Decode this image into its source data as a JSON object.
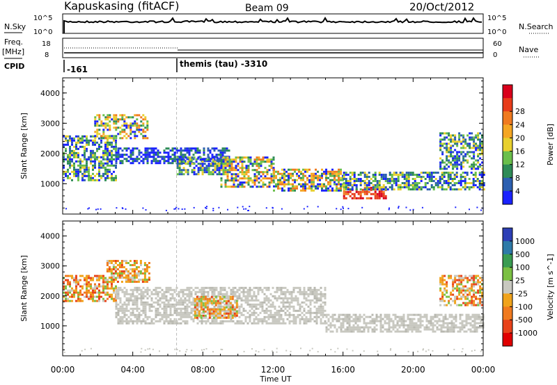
{
  "header": {
    "station": "Kapuskasing (fitACF)",
    "beam": "Beam 09",
    "date": "20/Oct/2012"
  },
  "top_panels": {
    "nsky_label": "N.Sky",
    "nsky_ticks": [
      "10^5",
      "10^0"
    ],
    "nsearch_label": "N.Search",
    "freq_label": "Freq.",
    "freq_unit": "[MHz]",
    "freq_ticks": [
      "18",
      "8"
    ],
    "nave_ticks": [
      "60",
      "0"
    ],
    "nave_label": "Nave",
    "cpid_label": "CPID",
    "cpid_values": [
      "-161",
      "themis (tau) -3310"
    ]
  },
  "chart_data": [
    {
      "type": "heatmap",
      "title": "",
      "xlabel": "Time UT",
      "ylabel": "Slant Range [km]",
      "xticks": [
        "00:00",
        "04:00",
        "08:00",
        "12:00",
        "16:00",
        "20:00",
        "00:00"
      ],
      "yticks": [
        "1000",
        "2000",
        "3000",
        "4000"
      ],
      "xlim_hours": [
        0,
        24
      ],
      "ylim_km": [
        0,
        4500
      ],
      "colorbar": {
        "label": "Power [dB]",
        "ticks": [
          "4",
          "8",
          "12",
          "16",
          "20",
          "24",
          "28"
        ],
        "colors": [
          "#1a22ff",
          "#2c5fb0",
          "#2e8b57",
          "#6abf4b",
          "#e8d02e",
          "#f5a623",
          "#f07a1f",
          "#e83c1a",
          "#d9001b"
        ]
      },
      "features": [
        {
          "t0": 0.0,
          "t1": 3.0,
          "r0": 1100,
          "r1": 2600,
          "level": "mid"
        },
        {
          "t0": 1.8,
          "t1": 4.8,
          "r0": 2500,
          "r1": 3300,
          "level": "high"
        },
        {
          "t0": 3.0,
          "t1": 9.5,
          "r0": 1700,
          "r1": 2200,
          "level": "low"
        },
        {
          "t0": 6.5,
          "t1": 9.5,
          "r0": 1300,
          "r1": 1900,
          "level": "mid"
        },
        {
          "t0": 9.0,
          "t1": 12.0,
          "r0": 900,
          "r1": 1900,
          "level": "high"
        },
        {
          "t0": 12.0,
          "t1": 16.0,
          "r0": 800,
          "r1": 1500,
          "level": "high"
        },
        {
          "t0": 16.0,
          "t1": 18.5,
          "r0": 500,
          "r1": 900,
          "level": "peak"
        },
        {
          "t0": 16.0,
          "t1": 24.0,
          "r0": 800,
          "r1": 1400,
          "level": "mid"
        },
        {
          "t0": 21.5,
          "t1": 24.0,
          "r0": 1500,
          "r1": 2700,
          "level": "mid"
        }
      ]
    },
    {
      "type": "heatmap",
      "title": "",
      "xlabel": "Time UT",
      "ylabel": "Slant Range [km]",
      "xticks": [
        "00:00",
        "04:00",
        "08:00",
        "12:00",
        "16:00",
        "20:00",
        "00:00"
      ],
      "yticks": [
        "1000",
        "2000",
        "3000",
        "4000"
      ],
      "xlim_hours": [
        0,
        24
      ],
      "ylim_km": [
        0,
        4500
      ],
      "colorbar": {
        "label": "Velocity [m s^-1]",
        "ticks": [
          "1000",
          "500",
          "100",
          "25",
          "-25",
          "-100",
          "-500",
          "-1000"
        ],
        "colors": [
          "#2d3fb5",
          "#2e7aa8",
          "#3a9c52",
          "#7bc043",
          "#c8c8c0",
          "#f0a31c",
          "#f07a1f",
          "#e8421a",
          "#e00000"
        ]
      },
      "features": [
        {
          "t0": 0.0,
          "t1": 3.0,
          "r0": 1800,
          "r1": 2700,
          "level": "neg"
        },
        {
          "t0": 2.5,
          "t1": 5.0,
          "r0": 2500,
          "r1": 3200,
          "level": "neg"
        },
        {
          "t0": 3.0,
          "t1": 15.0,
          "r0": 1100,
          "r1": 2300,
          "level": "ground"
        },
        {
          "t0": 7.5,
          "t1": 10.0,
          "r0": 1300,
          "r1": 2000,
          "level": "neg"
        },
        {
          "t0": 15.0,
          "t1": 24.0,
          "r0": 800,
          "r1": 1400,
          "level": "ground"
        },
        {
          "t0": 21.5,
          "t1": 24.0,
          "r0": 1700,
          "r1": 2700,
          "level": "neg"
        }
      ]
    }
  ]
}
